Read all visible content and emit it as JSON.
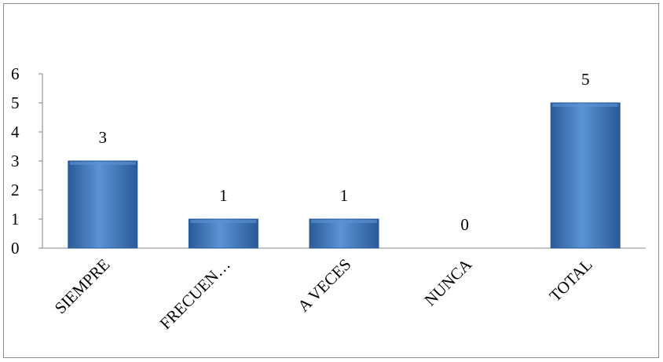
{
  "chart_data": {
    "type": "bar",
    "categories": [
      "SIEMPRE",
      "FRECUEN…",
      "A VECES",
      "NUNCA",
      "TOTAL"
    ],
    "values": [
      3,
      1,
      1,
      0,
      5
    ],
    "data_labels": [
      "3",
      "1",
      "1",
      "0",
      "5"
    ],
    "yticks": [
      "0",
      "1",
      "2",
      "3",
      "4",
      "5",
      "6"
    ],
    "ylim": [
      0,
      6
    ],
    "title": "",
    "xlabel": "",
    "ylabel": "",
    "grid": false,
    "legend": "none",
    "colors": {
      "bar_fill": "#3b73b9",
      "bar_light": "#5b93d5",
      "bar_dark": "#2a5a97",
      "axis": "#868686"
    }
  }
}
